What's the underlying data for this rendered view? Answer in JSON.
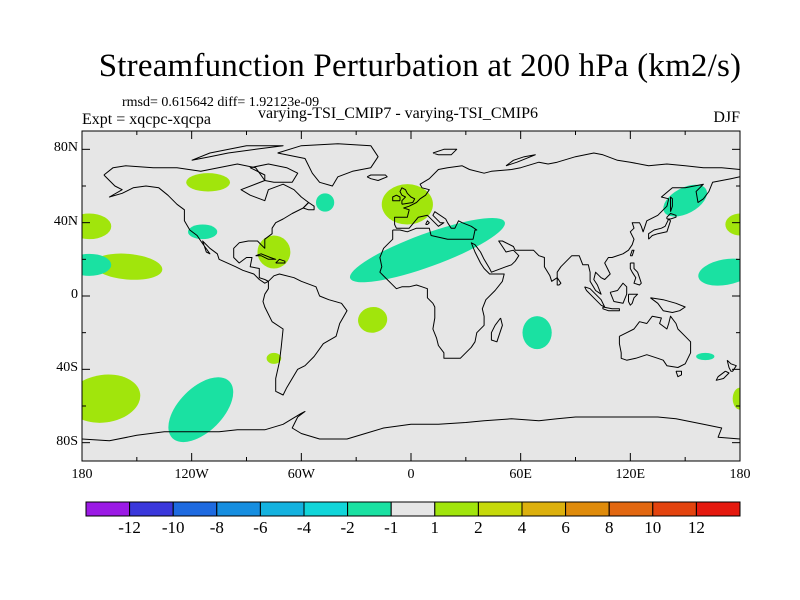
{
  "title": "Streamfunction Perturbation at 200 hPa (km2/s)",
  "stats": "rmsd= 0.615642 diff= 1.92123e-09",
  "experiment": "Expt = xqcpc-xqcpa",
  "subtitle": "varying-TSI_CMIP7 - varying-TSI_CMIP6",
  "season": "DJF",
  "map": {
    "projection": "cylindrical equidistant",
    "lon_range": [
      -180,
      180
    ],
    "lat_range": [
      -90,
      90
    ],
    "land_fill": "#e6e6e6",
    "y_ticks": [
      {
        "lat": 80,
        "label": "80N"
      },
      {
        "lat": 40,
        "label": "40N"
      },
      {
        "lat": 0,
        "label": "0"
      },
      {
        "lat": -40,
        "label": "40S"
      },
      {
        "lat": -80,
        "label": "80S"
      }
    ],
    "x_ticks": [
      {
        "lon": -180,
        "label": "180"
      },
      {
        "lon": -120,
        "label": "120W"
      },
      {
        "lon": -60,
        "label": "60W"
      },
      {
        "lon": 0,
        "label": "0"
      },
      {
        "lon": 60,
        "label": "60E"
      },
      {
        "lon": 120,
        "label": "120E"
      },
      {
        "lon": 180,
        "label": "180"
      }
    ]
  },
  "anomalies": [
    {
      "name": "pacific-n-tropical-pos",
      "sign": "positive",
      "lon": -155,
      "lat": 16,
      "rlon": 19,
      "rlat": 7,
      "rot": 5
    },
    {
      "name": "canada-pos",
      "sign": "positive",
      "lon": -111,
      "lat": 62,
      "rlon": 12,
      "rlat": 5,
      "rot": 0
    },
    {
      "name": "caribbean-pos",
      "sign": "positive",
      "lon": -75,
      "lat": 24,
      "rlon": 9,
      "rlat": 9,
      "rot": 0
    },
    {
      "name": "atlantic-n-neg",
      "sign": "negative",
      "lon": -47,
      "lat": 51,
      "rlon": 5,
      "rlat": 5,
      "rot": 0
    },
    {
      "name": "europe-pos",
      "sign": "positive",
      "lon": -2,
      "lat": 50,
      "rlon": 14,
      "rlat": 11,
      "rot": 0
    },
    {
      "name": "us-east-neg",
      "sign": "negative",
      "lon": -114,
      "lat": 35,
      "rlon": 8,
      "rlat": 4,
      "rot": 0
    },
    {
      "name": "atlantic-africa-asia-band-neg",
      "sign": "negative",
      "lon": 9,
      "lat": 25,
      "rlon": 45,
      "rlat": 9,
      "rot": -20
    },
    {
      "name": "south-atlantic-pos",
      "sign": "positive",
      "lon": -21,
      "lat": -13,
      "rlon": 8,
      "rlat": 7,
      "rot": -10
    },
    {
      "name": "indian-ocean-neg",
      "sign": "negative",
      "lon": 69,
      "lat": -20,
      "rlon": 8,
      "rlat": 9,
      "rot": 0
    },
    {
      "name": "japan-neg",
      "sign": "negative",
      "lon": 150,
      "lat": 52,
      "rlon": 13,
      "rlat": 7,
      "rot": -28
    },
    {
      "name": "west-pacific-neg",
      "sign": "negative",
      "lon": 172,
      "lat": 13,
      "rlon": 15,
      "rlat": 7,
      "rot": -10
    },
    {
      "name": "south-america-pos",
      "sign": "positive",
      "lon": -75,
      "lat": -34,
      "rlon": 4,
      "rlat": 3,
      "rot": 0
    },
    {
      "name": "south-pacific-neg",
      "sign": "negative",
      "lon": -115,
      "lat": -62,
      "rlon": 22,
      "rlat": 12,
      "rot": -45
    },
    {
      "name": "se-pacific-pos",
      "sign": "positive",
      "lon": -168,
      "lat": -56,
      "rlon": 20,
      "rlat": 13,
      "rot": -8
    },
    {
      "name": "west-edge-pos",
      "sign": "positive",
      "lon": -176,
      "lat": 38,
      "rlon": 12,
      "rlat": 7,
      "rot": 0
    },
    {
      "name": "west-edge-neg",
      "sign": "negative",
      "lon": -176,
      "lat": 17,
      "rlon": 12,
      "rlat": 6,
      "rot": 0
    },
    {
      "name": "east-edge-pos",
      "sign": "positive",
      "lon": 180,
      "lat": 39,
      "rlon": 8,
      "rlat": 6,
      "rot": 0
    },
    {
      "name": "east-edge-pos-south",
      "sign": "positive",
      "lon": 180,
      "lat": -56,
      "rlon": 4,
      "rlat": 6,
      "rot": 0
    },
    {
      "name": "australia-east-neg",
      "sign": "negative",
      "lon": 161,
      "lat": -33,
      "rlon": 5,
      "rlat": 2,
      "rot": 0
    }
  ],
  "colors": {
    "positive": "#a1e50c",
    "negative": "#1ae1a2"
  },
  "colorbar": {
    "bins": [
      {
        "color": "#9b1ae5"
      },
      {
        "color": "#3a37db"
      },
      {
        "color": "#1e6ae0"
      },
      {
        "color": "#168ee0"
      },
      {
        "color": "#14b2df"
      },
      {
        "color": "#11d5d9"
      },
      {
        "color": "#1ae1a2"
      },
      {
        "color": "#e6e6e6"
      },
      {
        "color": "#a1e50c"
      },
      {
        "color": "#c6d90a"
      },
      {
        "color": "#dcb00d"
      },
      {
        "color": "#df8b0b"
      },
      {
        "color": "#e26710"
      },
      {
        "color": "#e3430e"
      },
      {
        "color": "#e5190e"
      }
    ],
    "labels": [
      "-12",
      "-10",
      "-8",
      "-6",
      "-4",
      "-2",
      "-1",
      "1",
      "2",
      "4",
      "6",
      "8",
      "10",
      "12"
    ]
  }
}
